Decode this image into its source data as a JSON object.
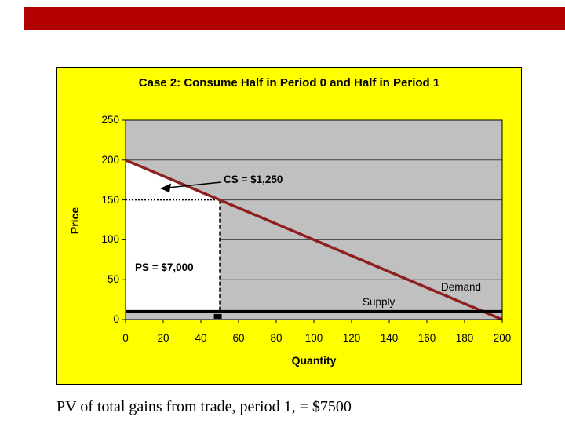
{
  "colors": {
    "top_bar": "#b20000",
    "chart_background": "#ffff00",
    "plot_background": "#c0c0c0",
    "demand_line": "#8e2020",
    "supply_line": "#000000",
    "surplus_fill": "#ffffff",
    "gridline": "#404040"
  },
  "caption": "PV of total gains from trade, period 1, = $7500",
  "chart_data": {
    "type": "line",
    "title": "Case 2: Consume Half in Period 0 and Half in Period 1",
    "xlabel": "Quantity",
    "ylabel": "Price",
    "xlim": [
      0,
      200
    ],
    "ylim": [
      0,
      250
    ],
    "x_ticks": [
      0,
      20,
      40,
      60,
      80,
      100,
      120,
      140,
      160,
      180,
      200
    ],
    "y_ticks": [
      0,
      50,
      100,
      150,
      200,
      250
    ],
    "grid": "horizontal",
    "legend_position": "none",
    "plot_bg": "#c0c0c0",
    "series": [
      {
        "name": "Demand",
        "color": "#8e2020",
        "width": 3.5,
        "points": [
          [
            0,
            200
          ],
          [
            200,
            0
          ]
        ]
      },
      {
        "name": "Supply",
        "color": "#000000",
        "width": 4,
        "points": [
          [
            0,
            10
          ],
          [
            200,
            10
          ]
        ]
      }
    ],
    "surplus_region": {
      "fill": "#ffffff",
      "vertices": [
        [
          0,
          200
        ],
        [
          50,
          150
        ],
        [
          50,
          10
        ],
        [
          0,
          10
        ]
      ],
      "description": "White area: consumer surplus triangle above price 150 plus producer surplus rectangle from price 10 to 150 over quantity 0 to 50"
    },
    "guide_lines": [
      {
        "from": [
          0,
          150
        ],
        "to": [
          50,
          150
        ],
        "style": "dotted"
      },
      {
        "from": [
          50,
          150
        ],
        "to": [
          50,
          10
        ],
        "style": "dashed"
      }
    ],
    "marker": {
      "x": 49,
      "y": 4
    },
    "annotations": {
      "cs": {
        "text": "CS = $1,250",
        "value": 1250
      },
      "ps": {
        "text": "PS = $7,000",
        "value": 7000
      },
      "supply": {
        "text": "Supply"
      },
      "demand": {
        "text": "Demand"
      }
    }
  }
}
